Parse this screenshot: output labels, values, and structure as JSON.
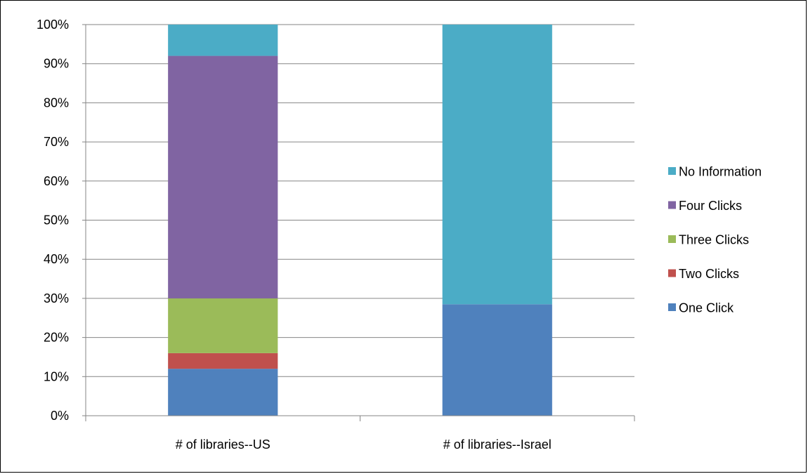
{
  "caption": "",
  "chart_data": {
    "type": "bar",
    "stacked": true,
    "categories": [
      "# of libraries--US",
      "# of libraries--Israel"
    ],
    "series": [
      {
        "name": "One Click",
        "values": [
          12,
          28.5
        ],
        "color": "#4f81bd"
      },
      {
        "name": "Two Clicks",
        "values": [
          4,
          0
        ],
        "color": "#c0504d"
      },
      {
        "name": "Three Clicks",
        "values": [
          14,
          0
        ],
        "color": "#9bbb59"
      },
      {
        "name": "Four Clicks",
        "values": [
          62,
          0
        ],
        "color": "#8064a2"
      },
      {
        "name": "No Information",
        "values": [
          8,
          71.5
        ],
        "color": "#4bacc6"
      }
    ],
    "ylim": [
      0,
      100
    ],
    "yticks": [
      "0%",
      "10%",
      "20%",
      "30%",
      "40%",
      "50%",
      "60%",
      "70%",
      "80%",
      "90%",
      "100%"
    ],
    "grid": true,
    "legend_position": "right",
    "legend_order": [
      "No Information",
      "Four Clicks",
      "Three Clicks",
      "Two Clicks",
      "One Click"
    ]
  }
}
